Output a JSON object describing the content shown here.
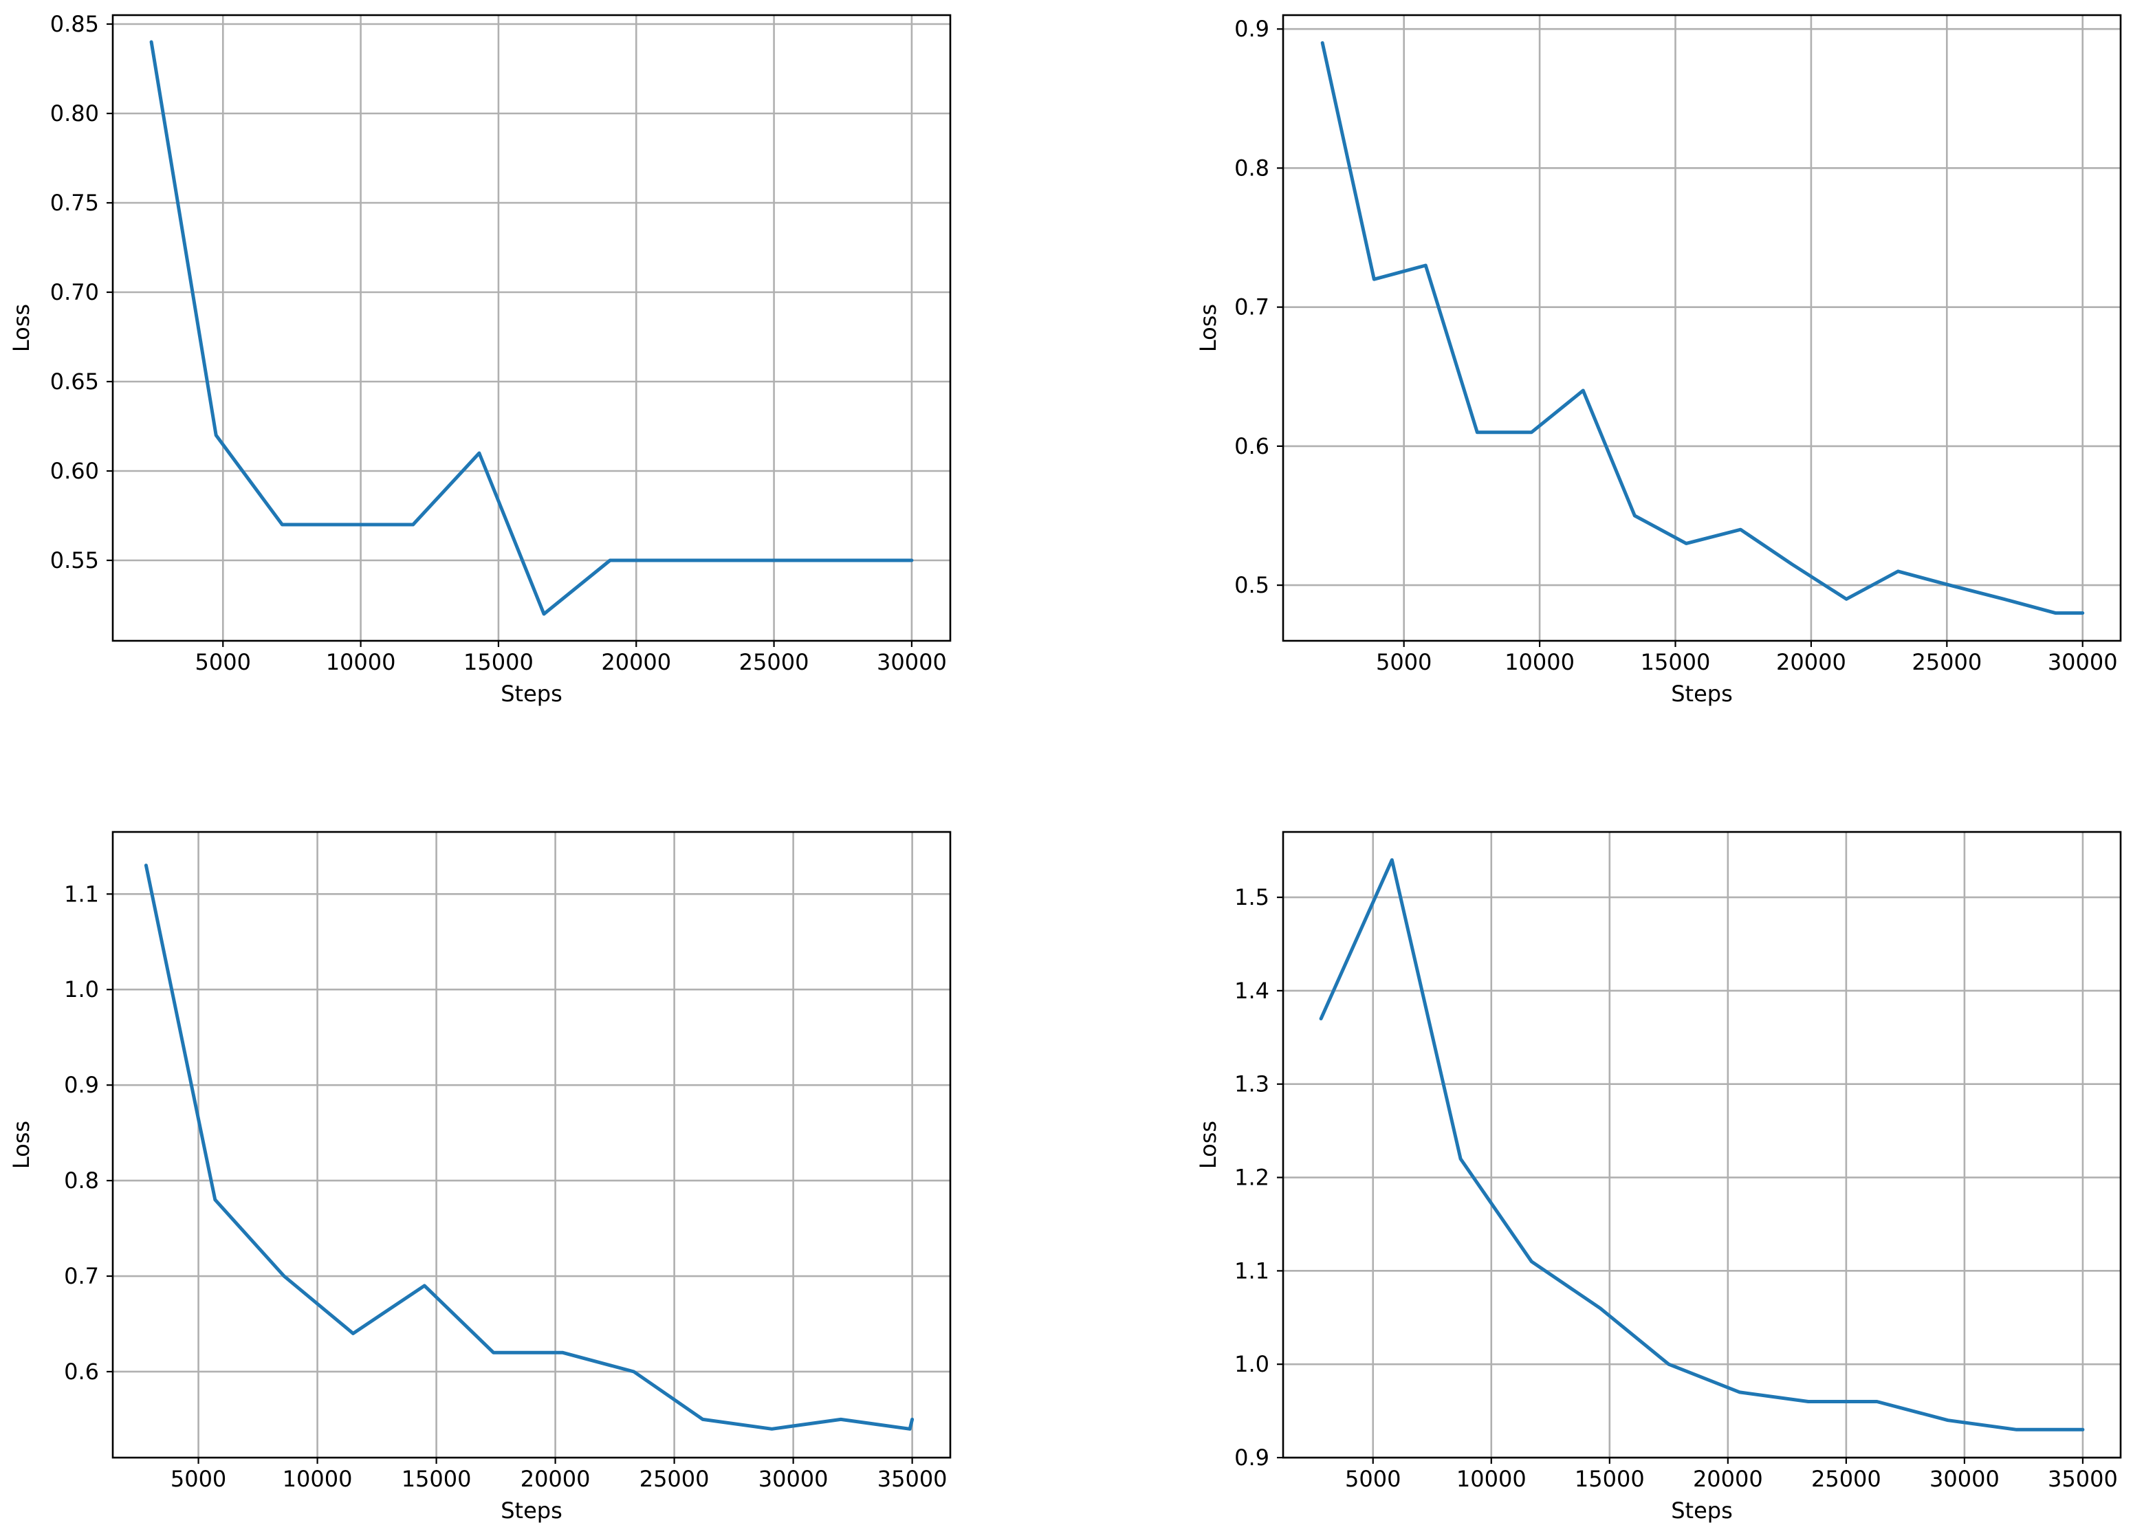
{
  "chart_data": [
    {
      "type": "line",
      "xlabel": "Steps",
      "ylabel": "Loss",
      "xlim": [
        1000,
        31400
      ],
      "ylim": [
        0.505,
        0.855
      ],
      "xticks": [
        5000,
        10000,
        15000,
        20000,
        25000,
        30000
      ],
      "xtick_labels": [
        "5000",
        "10000",
        "15000",
        "20000",
        "25000",
        "30000"
      ],
      "yticks": [
        0.55,
        0.6,
        0.65,
        0.7,
        0.75,
        0.8,
        0.85
      ],
      "ytick_labels": [
        "0.55",
        "0.60",
        "0.65",
        "0.70",
        "0.75",
        "0.80",
        "0.85"
      ],
      "grid": true,
      "series": [
        {
          "x": [
            2400,
            4750,
            7150,
            9550,
            11900,
            14300,
            16650,
            19050,
            21400,
            23800,
            26150,
            28550,
            30000
          ],
          "y": [
            0.84,
            0.62,
            0.57,
            0.57,
            0.57,
            0.61,
            0.52,
            0.55,
            0.55,
            0.55,
            0.55,
            0.55,
            0.55
          ],
          "color": "#1f77b4"
        }
      ]
    },
    {
      "type": "line",
      "xlabel": "Steps",
      "ylabel": "Loss",
      "xlim": [
        550,
        31400
      ],
      "ylim": [
        0.46,
        0.91
      ],
      "xticks": [
        5000,
        10000,
        15000,
        20000,
        25000,
        30000
      ],
      "xtick_labels": [
        "5000",
        "10000",
        "15000",
        "20000",
        "25000",
        "30000"
      ],
      "yticks": [
        0.5,
        0.6,
        0.7,
        0.8,
        0.9
      ],
      "ytick_labels": [
        "0.5",
        "0.6",
        "0.7",
        "0.8",
        "0.9"
      ],
      "grid": true,
      "series": [
        {
          "x": [
            2000,
            3900,
            5800,
            7700,
            9700,
            11600,
            13500,
            15400,
            17400,
            19300,
            21300,
            23200,
            25100,
            27100,
            29000,
            30000
          ],
          "y": [
            0.89,
            0.72,
            0.73,
            0.61,
            0.61,
            0.64,
            0.55,
            0.53,
            0.54,
            0.515,
            0.49,
            0.51,
            0.5,
            0.49,
            0.48,
            0.48
          ],
          "color": "#1f77b4"
        }
      ]
    },
    {
      "type": "line",
      "xlabel": "Steps",
      "ylabel": "Loss",
      "xlim": [
        1400,
        36600
      ],
      "ylim": [
        0.51,
        1.165
      ],
      "xticks": [
        5000,
        10000,
        15000,
        20000,
        25000,
        30000,
        35000
      ],
      "xtick_labels": [
        "5000",
        "10000",
        "15000",
        "20000",
        "25000",
        "30000",
        "35000"
      ],
      "yticks": [
        0.6,
        0.7,
        0.8,
        0.9,
        1.0,
        1.1
      ],
      "ytick_labels": [
        "0.6",
        "0.7",
        "0.8",
        "0.9",
        "1.0",
        "1.1"
      ],
      "grid": true,
      "series": [
        {
          "x": [
            2800,
            5700,
            8600,
            11500,
            14500,
            17400,
            20300,
            23300,
            26200,
            29100,
            32000,
            34900,
            35000
          ],
          "y": [
            1.13,
            0.78,
            0.7,
            0.64,
            0.69,
            0.62,
            0.62,
            0.6,
            0.55,
            0.54,
            0.55,
            0.54,
            0.55
          ],
          "color": "#1f77b4"
        }
      ]
    },
    {
      "type": "line",
      "xlabel": "Steps",
      "ylabel": "Loss",
      "xlim": [
        1200,
        36600
      ],
      "ylim": [
        0.9,
        1.57
      ],
      "xticks": [
        5000,
        10000,
        15000,
        20000,
        25000,
        30000,
        35000
      ],
      "xtick_labels": [
        "5000",
        "10000",
        "15000",
        "20000",
        "25000",
        "30000",
        "35000"
      ],
      "yticks": [
        0.9,
        1.0,
        1.1,
        1.2,
        1.3,
        1.4,
        1.5
      ],
      "ytick_labels": [
        "0.9",
        "1.0",
        "1.1",
        "1.2",
        "1.3",
        "1.4",
        "1.5"
      ],
      "grid": true,
      "series": [
        {
          "x": [
            2800,
            5800,
            8700,
            11700,
            14600,
            17500,
            20500,
            23400,
            26300,
            29300,
            32200,
            35000
          ],
          "y": [
            1.37,
            1.54,
            1.22,
            1.11,
            1.06,
            1.0,
            0.97,
            0.96,
            0.96,
            0.94,
            0.93,
            0.93
          ],
          "color": "#1f77b4"
        }
      ]
    }
  ]
}
